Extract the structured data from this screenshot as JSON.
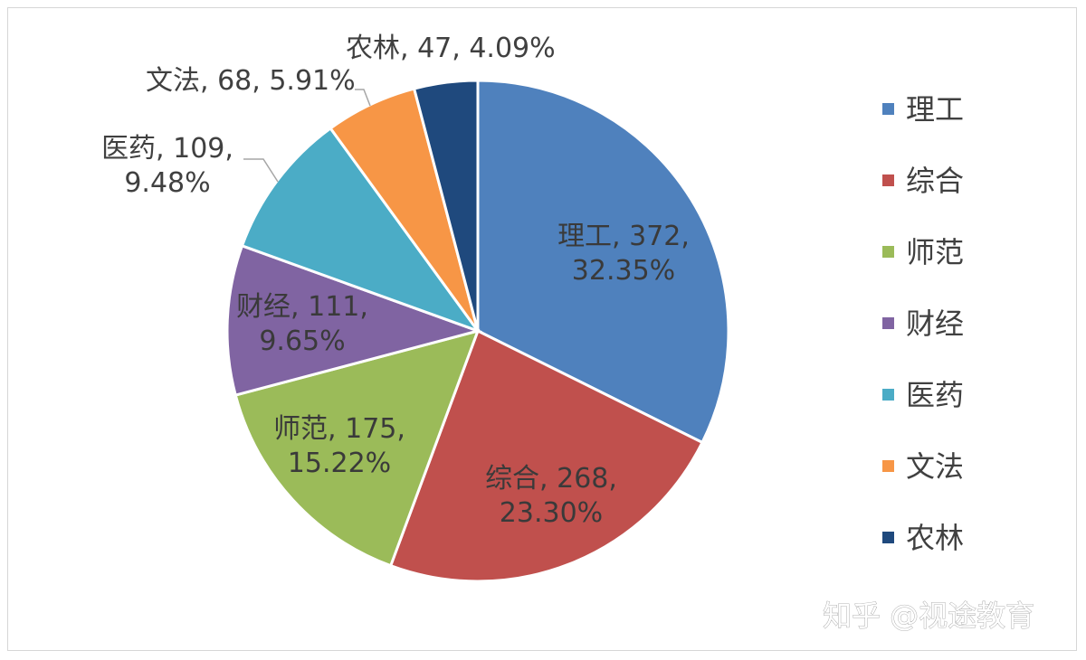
{
  "chart_data": {
    "type": "pie",
    "categories": [
      "理工",
      "综合",
      "师范",
      "财经",
      "医药",
      "文法",
      "农林"
    ],
    "values": [
      372,
      268,
      175,
      111,
      109,
      68,
      47
    ],
    "percentages": [
      "32.35%",
      "23.30%",
      "15.22%",
      "9.65%",
      "9.48%",
      "5.91%",
      "4.09%"
    ],
    "colors": [
      "#4f81bd",
      "#c0504d",
      "#9bbb59",
      "#8064a2",
      "#4bacc6",
      "#f79646",
      "#1f497d"
    ],
    "data_labels": [
      [
        "理工, 372,",
        "32.35%"
      ],
      [
        "综合, 268,",
        "23.30%"
      ],
      [
        "师范, 175,",
        "15.22%"
      ],
      [
        "财经, 111,",
        "9.65%"
      ],
      [
        "医药, 109,",
        "9.48%"
      ],
      [
        "文法, 68, 5.91%"
      ],
      [
        "农林, 47, 4.09%"
      ]
    ],
    "legend": [
      "理工",
      "综合",
      "师范",
      "财经",
      "医药",
      "文法",
      "农林"
    ],
    "legend_position": "right",
    "start_angle": "12 o'clock",
    "direction": "clockwise"
  },
  "watermark": "知乎 @视途教育"
}
